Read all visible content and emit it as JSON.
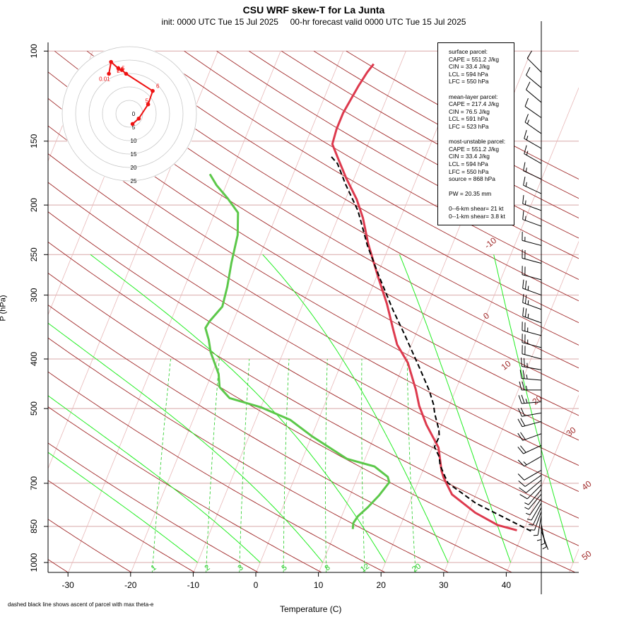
{
  "header": {
    "title": "CSU WRF skew-T for La Junta",
    "subtitle": "init: 0000 UTC Tue 15 Jul 2025     00-hr forecast valid 0000 UTC Tue 15 Jul 2025"
  },
  "footnote": "dashed black line shows ascent of parcel with max theta-e",
  "stats": {
    "surface": [
      "surface parcel:",
      "CAPE = 551.2 J/kg",
      "CIN = 33.4 J/kg",
      "LCL = 594 hPa",
      "LFC = 550 hPa"
    ],
    "mean_layer": [
      "mean-layer parcel:",
      "CAPE = 217.4 J/kg",
      "CIN = 76.5 J/kg",
      "LCL = 591 hPa",
      "LFC = 523 hPa"
    ],
    "most_unstable": [
      "most-unstable parcel:",
      "CAPE = 551.2 J/kg",
      "CIN = 33.4 J/kg",
      "LCL = 594 hPa",
      "LFC = 550 hPa",
      "source = 868 hPa"
    ],
    "pw": "PW =  20.35 mm",
    "shear": [
      "0--6-km shear= 21 kt",
      "0--1-km shear= 3.8 kt"
    ]
  },
  "colors": {
    "isobar": "#d8a8a8",
    "isotherm": "#e8b8b8",
    "dry_adiabat": "#a02828",
    "moist_adiabat": "#22ee22",
    "mixing_ratio": "#22cc22",
    "temperature": "#dd3a4e",
    "dewpoint": "#5cc84a",
    "parcel": "#000000",
    "hodograph": "#ee1111"
  },
  "chart_data": {
    "type": "line",
    "title": "CSU WRF skew-T for La Junta",
    "xlabel": "Temperature (C)",
    "ylabel": "P (hPa)",
    "x_ticks": [
      -30,
      -20,
      -10,
      0,
      10,
      20,
      30,
      40
    ],
    "y_ticks": [
      100,
      150,
      200,
      250,
      300,
      400,
      500,
      700,
      850,
      1000
    ],
    "xlim": [
      -33,
      50
    ],
    "ylim": [
      1050,
      100
    ],
    "skew_isotherm_labels": [
      "-10",
      "0",
      "10",
      "20",
      "30",
      "40",
      "50"
    ],
    "mixing_ratio_labels": [
      "1",
      "2",
      "3",
      "5",
      "8",
      "12",
      "20"
    ],
    "series": [
      {
        "name": "temperature",
        "points": [
          [
            38.9,
            865
          ],
          [
            35.5,
            845
          ],
          [
            31.1,
            799
          ],
          [
            26.2,
            736
          ],
          [
            23.8,
            683
          ],
          [
            23.0,
            662
          ],
          [
            21.0,
            596
          ],
          [
            17.6,
            538
          ],
          [
            15.2,
            494
          ],
          [
            13.6,
            459
          ],
          [
            10.6,
            407
          ],
          [
            7.7,
            375
          ],
          [
            6.0,
            349
          ],
          [
            3.4,
            312
          ],
          [
            0.3,
            277
          ],
          [
            -3.5,
            238
          ],
          [
            -6.0,
            212
          ],
          [
            -8.2,
            195
          ],
          [
            -11.3,
            177
          ],
          [
            -13.7,
            163
          ],
          [
            -15.7,
            152
          ],
          [
            -16.0,
            142
          ],
          [
            -16.0,
            132
          ],
          [
            -15.6,
            123
          ],
          [
            -15.3,
            117
          ],
          [
            -14.8,
            110
          ],
          [
            -14.3,
            106
          ]
        ]
      },
      {
        "name": "dewpoint",
        "points": [
          [
            12.6,
            860
          ],
          [
            12.3,
            837
          ],
          [
            12.6,
            812
          ],
          [
            13.6,
            780
          ],
          [
            14.6,
            740
          ],
          [
            15.4,
            697
          ],
          [
            14.8,
            680
          ],
          [
            12.0,
            649
          ],
          [
            7.1,
            627
          ],
          [
            0.0,
            566
          ],
          [
            -4.5,
            526
          ],
          [
            -10.0,
            497
          ],
          [
            -15.6,
            477
          ],
          [
            -17.9,
            454
          ],
          [
            -18.9,
            428
          ],
          [
            -21.6,
            388
          ],
          [
            -22.7,
            367
          ],
          [
            -24.0,
            348
          ],
          [
            -23.8,
            338
          ],
          [
            -22.7,
            316
          ],
          [
            -23.2,
            289
          ],
          [
            -24.1,
            259
          ],
          [
            -24.9,
            229
          ],
          [
            -26.3,
            207
          ],
          [
            -28.9,
            194
          ],
          [
            -31.5,
            183
          ],
          [
            -33.3,
            174
          ]
        ]
      },
      {
        "name": "parcel",
        "points": [
          [
            41.2,
            868
          ],
          [
            30.6,
            766
          ],
          [
            24.8,
            699
          ],
          [
            23.6,
            672
          ],
          [
            22.4,
            645
          ],
          [
            21.7,
            621
          ],
          [
            20.3,
            594
          ],
          [
            20.4,
            567
          ],
          [
            19.9,
            550
          ],
          [
            18.2,
            512
          ],
          [
            17.4,
            491
          ],
          [
            15.8,
            461
          ],
          [
            12.9,
            418
          ],
          [
            8.2,
            358
          ],
          [
            4.8,
            321
          ],
          [
            0.5,
            277
          ],
          [
            -3.5,
            240
          ],
          [
            -5.8,
            218
          ],
          [
            -7.3,
            205
          ],
          [
            -11.0,
            182
          ],
          [
            -13.6,
            166
          ],
          [
            -15.3,
            160
          ]
        ]
      }
    ],
    "hodograph": {
      "ring_labels": [
        "0",
        "5",
        "10",
        "15",
        "20",
        "25"
      ],
      "points": [
        {
          "u": 1.2,
          "v": -3.8
        },
        {
          "u": 3.5,
          "v": -1.8
        },
        {
          "u": 7.0,
          "v": 3.5
        },
        {
          "u": 8.7,
          "v": 8.5
        },
        {
          "u": -1.2,
          "v": 14.9
        },
        {
          "u": -2.8,
          "v": 16.3
        },
        {
          "u": -4.1,
          "v": 16.9
        },
        {
          "u": -6.8,
          "v": 19.3
        },
        {
          "u": -7.6,
          "v": 14.9
        }
      ],
      "labels": [
        "6",
        "5",
        "2",
        "1.5",
        "0.5",
        "0.01"
      ]
    },
    "wind_barbs": [
      {
        "p": 868,
        "spd": 4,
        "dir": 160
      },
      {
        "p": 855,
        "spd": 5,
        "dir": 165
      },
      {
        "p": 840,
        "spd": 5,
        "dir": 170
      },
      {
        "p": 825,
        "spd": 6,
        "dir": 180
      },
      {
        "p": 810,
        "spd": 6,
        "dir": 190
      },
      {
        "p": 795,
        "spd": 6,
        "dir": 200
      },
      {
        "p": 780,
        "spd": 7,
        "dir": 205
      },
      {
        "p": 765,
        "spd": 8,
        "dir": 210
      },
      {
        "p": 750,
        "spd": 8,
        "dir": 215
      },
      {
        "p": 735,
        "spd": 9,
        "dir": 220
      },
      {
        "p": 720,
        "spd": 9,
        "dir": 220
      },
      {
        "p": 705,
        "spd": 10,
        "dir": 225
      },
      {
        "p": 690,
        "spd": 10,
        "dir": 230
      },
      {
        "p": 675,
        "spd": 10,
        "dir": 235
      },
      {
        "p": 660,
        "spd": 10,
        "dir": 240
      },
      {
        "p": 620,
        "spd": 15,
        "dir": 240
      },
      {
        "p": 590,
        "spd": 20,
        "dir": 245
      },
      {
        "p": 560,
        "spd": 20,
        "dir": 250
      },
      {
        "p": 530,
        "spd": 20,
        "dir": 255
      },
      {
        "p": 510,
        "spd": 20,
        "dir": 260
      },
      {
        "p": 485,
        "spd": 25,
        "dir": 265
      },
      {
        "p": 460,
        "spd": 25,
        "dir": 270
      },
      {
        "p": 440,
        "spd": 25,
        "dir": 275
      },
      {
        "p": 420,
        "spd": 25,
        "dir": 280
      },
      {
        "p": 400,
        "spd": 20,
        "dir": 285
      },
      {
        "p": 380,
        "spd": 25,
        "dir": 285
      },
      {
        "p": 360,
        "spd": 25,
        "dir": 285
      },
      {
        "p": 340,
        "spd": 25,
        "dir": 290
      },
      {
        "p": 320,
        "spd": 25,
        "dir": 290
      },
      {
        "p": 300,
        "spd": 25,
        "dir": 290
      },
      {
        "p": 280,
        "spd": 20,
        "dir": 285
      },
      {
        "p": 260,
        "spd": 20,
        "dir": 285
      },
      {
        "p": 240,
        "spd": 15,
        "dir": 285
      },
      {
        "p": 220,
        "spd": 15,
        "dir": 290
      },
      {
        "p": 205,
        "spd": 15,
        "dir": 290
      },
      {
        "p": 190,
        "spd": 15,
        "dir": 295
      },
      {
        "p": 178,
        "spd": 15,
        "dir": 295
      },
      {
        "p": 166,
        "spd": 15,
        "dir": 300
      },
      {
        "p": 155,
        "spd": 15,
        "dir": 300
      },
      {
        "p": 145,
        "spd": 15,
        "dir": 305
      },
      {
        "p": 135,
        "spd": 10,
        "dir": 305
      },
      {
        "p": 126,
        "spd": 10,
        "dir": 310
      },
      {
        "p": 118,
        "spd": 10,
        "dir": 310
      },
      {
        "p": 110,
        "spd": 10,
        "dir": 315
      }
    ]
  }
}
